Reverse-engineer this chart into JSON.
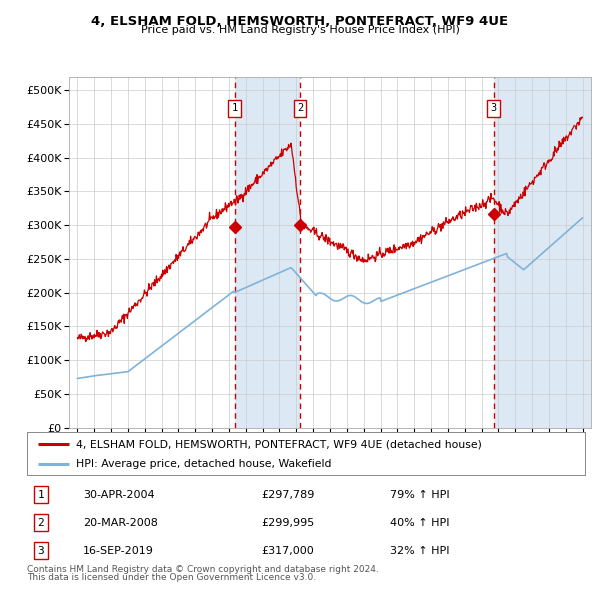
{
  "title": "4, ELSHAM FOLD, HEMSWORTH, PONTEFRACT, WF9 4UE",
  "subtitle": "Price paid vs. HM Land Registry's House Price Index (HPI)",
  "legend_label_red": "4, ELSHAM FOLD, HEMSWORTH, PONTEFRACT, WF9 4UE (detached house)",
  "legend_label_blue": "HPI: Average price, detached house, Wakefield",
  "transactions": [
    {
      "num": 1,
      "date": "30-APR-2004",
      "price": 297789,
      "price_str": "£297,789",
      "pct": "79%",
      "dir": "↑",
      "year": 2004.33
    },
    {
      "num": 2,
      "date": "20-MAR-2008",
      "price": 299995,
      "price_str": "£299,995",
      "pct": "40%",
      "dir": "↑",
      "year": 2008.22
    },
    {
      "num": 3,
      "date": "16-SEP-2019",
      "price": 317000,
      "price_str": "£317,000",
      "pct": "32%",
      "dir": "↑",
      "year": 2019.71
    }
  ],
  "footnote1": "Contains HM Land Registry data © Crown copyright and database right 2024.",
  "footnote2": "This data is licensed under the Open Government Licence v3.0.",
  "ylim": [
    0,
    520000
  ],
  "yticks": [
    0,
    50000,
    100000,
    150000,
    200000,
    250000,
    300000,
    350000,
    400000,
    450000,
    500000
  ],
  "xlim_start": 1994.5,
  "xlim_end": 2025.5,
  "background_color": "#dce9f5",
  "white": "#ffffff",
  "line_color_red": "#cc0000",
  "line_color_blue": "#7fb3d9",
  "grid_color": "#cccccc",
  "dashed_line_color": "#cc0000",
  "box_edge_color": "#cc0000",
  "footnote_color": "#555555"
}
